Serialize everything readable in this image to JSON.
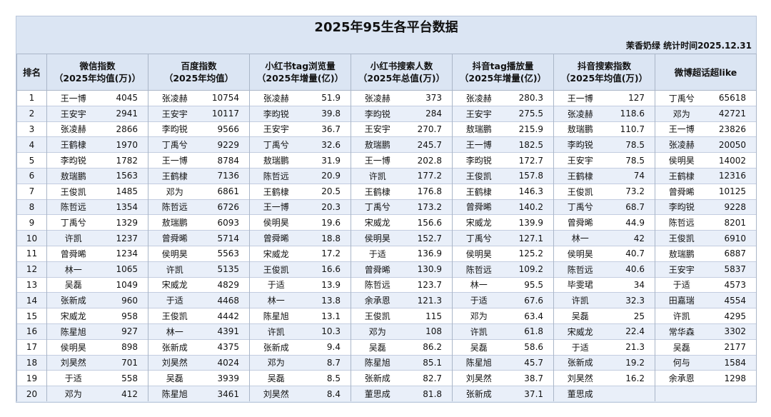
{
  "title": "2025年95生各平台数据",
  "subtitle": "茉香奶绿  统计时间2025.12.31",
  "rank_header": "排名",
  "ranks": [
    1,
    2,
    3,
    4,
    5,
    6,
    7,
    8,
    9,
    10,
    11,
    12,
    13,
    14,
    15,
    16,
    17,
    18,
    19,
    20
  ],
  "columns": [
    {
      "header": [
        "微信指数",
        "（2025年均值(万)）"
      ],
      "entries": [
        {
          "name": "王一博",
          "value": 4045
        },
        {
          "name": "王安宇",
          "value": 2941
        },
        {
          "name": "张凌赫",
          "value": 2866
        },
        {
          "name": "王鹤棣",
          "value": 1970
        },
        {
          "name": "李昀锐",
          "value": 1782
        },
        {
          "name": "敖瑞鹏",
          "value": 1563
        },
        {
          "name": "王俊凯",
          "value": 1485
        },
        {
          "name": "陈哲远",
          "value": 1354
        },
        {
          "name": "丁禹兮",
          "value": 1329
        },
        {
          "name": "许凯",
          "value": 1237
        },
        {
          "name": "曾舜晞",
          "value": 1234
        },
        {
          "name": "林一",
          "value": 1065
        },
        {
          "name": "吴磊",
          "value": 1049
        },
        {
          "name": "张新成",
          "value": 960
        },
        {
          "name": "宋威龙",
          "value": 958
        },
        {
          "name": "陈星旭",
          "value": 927
        },
        {
          "name": "侯明昊",
          "value": 898
        },
        {
          "name": "刘昊然",
          "value": 701
        },
        {
          "name": "于适",
          "value": 558
        },
        {
          "name": "邓为",
          "value": 412
        }
      ]
    },
    {
      "header": [
        "百度指数",
        "（2025年均值）"
      ],
      "entries": [
        {
          "name": "张凌赫",
          "value": 10754
        },
        {
          "name": "王安宇",
          "value": 10117
        },
        {
          "name": "李昀锐",
          "value": 9566
        },
        {
          "name": "丁禹兮",
          "value": 9229
        },
        {
          "name": "王一博",
          "value": 8784
        },
        {
          "name": "王鹤棣",
          "value": 7136
        },
        {
          "name": "邓为",
          "value": 6861
        },
        {
          "name": "陈哲远",
          "value": 6726
        },
        {
          "name": "敖瑞鹏",
          "value": 6093
        },
        {
          "name": "曾舜晞",
          "value": 5714
        },
        {
          "name": "侯明昊",
          "value": 5563
        },
        {
          "name": "许凯",
          "value": 5135
        },
        {
          "name": "宋威龙",
          "value": 4829
        },
        {
          "name": "于适",
          "value": 4468
        },
        {
          "name": "王俊凯",
          "value": 4442
        },
        {
          "name": "林一",
          "value": 4391
        },
        {
          "name": "张新成",
          "value": 4375
        },
        {
          "name": "刘昊然",
          "value": 4024
        },
        {
          "name": "吴磊",
          "value": 3939
        },
        {
          "name": "陈星旭",
          "value": 3461
        }
      ]
    },
    {
      "header": [
        "小红书tag浏览量",
        "（2025年增量(亿)）"
      ],
      "entries": [
        {
          "name": "张凌赫",
          "value": 51.9
        },
        {
          "name": "李昀锐",
          "value": 39.8
        },
        {
          "name": "王安宇",
          "value": 36.7
        },
        {
          "name": "丁禹兮",
          "value": 32.6
        },
        {
          "name": "敖瑞鹏",
          "value": 31.9
        },
        {
          "name": "陈哲远",
          "value": 20.9
        },
        {
          "name": "王鹤棣",
          "value": 20.5
        },
        {
          "name": "王一博",
          "value": 20.3
        },
        {
          "name": "侯明昊",
          "value": 19.6
        },
        {
          "name": "曾舜晞",
          "value": 18.8
        },
        {
          "name": "宋威龙",
          "value": 17.2
        },
        {
          "name": "王俊凯",
          "value": 16.6
        },
        {
          "name": "于适",
          "value": 13.9
        },
        {
          "name": "林一",
          "value": 13.8
        },
        {
          "name": "陈星旭",
          "value": 13.1
        },
        {
          "name": "许凯",
          "value": 10.3
        },
        {
          "name": "张新成",
          "value": 9.4
        },
        {
          "name": "邓为",
          "value": 8.7
        },
        {
          "name": "吴磊",
          "value": 8.5
        },
        {
          "name": "刘昊然",
          "value": 8.4
        }
      ]
    },
    {
      "header": [
        "小红书搜索人数",
        "（2025年总值(万)）"
      ],
      "entries": [
        {
          "name": "张凌赫",
          "value": 373
        },
        {
          "name": "李昀锐",
          "value": 284
        },
        {
          "name": "王安宇",
          "value": 270.7
        },
        {
          "name": "敖瑞鹏",
          "value": 245.7
        },
        {
          "name": "王一博",
          "value": 202.8
        },
        {
          "name": "许凯",
          "value": 177.2
        },
        {
          "name": "王鹤棣",
          "value": 176.8
        },
        {
          "name": "丁禹兮",
          "value": 173.2
        },
        {
          "name": "宋威龙",
          "value": 156.6
        },
        {
          "name": "侯明昊",
          "value": 152.7
        },
        {
          "name": "于适",
          "value": 136.9
        },
        {
          "name": "曾舜晞",
          "value": 130.9
        },
        {
          "name": "陈哲远",
          "value": 123.7
        },
        {
          "name": "余承恩",
          "value": 121.3
        },
        {
          "name": "王俊凯",
          "value": 115
        },
        {
          "name": "邓为",
          "value": 108
        },
        {
          "name": "吴磊",
          "value": 86.2
        },
        {
          "name": "陈星旭",
          "value": 85.1
        },
        {
          "name": "张新成",
          "value": 82.7
        },
        {
          "name": "董思成",
          "value": 81.8
        }
      ]
    },
    {
      "header": [
        "抖音tag播放量",
        "（2025年增量(亿)）"
      ],
      "entries": [
        {
          "name": "张凌赫",
          "value": 280.3
        },
        {
          "name": "王安宇",
          "value": 275.5
        },
        {
          "name": "敖瑞鹏",
          "value": 215.9
        },
        {
          "name": "王一博",
          "value": 182.5
        },
        {
          "name": "李昀锐",
          "value": 172.7
        },
        {
          "name": "王俊凯",
          "value": 157.8
        },
        {
          "name": "王鹤棣",
          "value": 146.3
        },
        {
          "name": "曾舜晞",
          "value": 140.2
        },
        {
          "name": "宋威龙",
          "value": 139.9
        },
        {
          "name": "丁禹兮",
          "value": 127.1
        },
        {
          "name": "侯明昊",
          "value": 125.2
        },
        {
          "name": "陈哲远",
          "value": 109.2
        },
        {
          "name": "林一",
          "value": 95.5
        },
        {
          "name": "于适",
          "value": 67.6
        },
        {
          "name": "邓为",
          "value": 63.4
        },
        {
          "name": "许凯",
          "value": 61.8
        },
        {
          "name": "吴磊",
          "value": 58.6
        },
        {
          "name": "陈星旭",
          "value": 45.7
        },
        {
          "name": "刘昊然",
          "value": 38.7
        },
        {
          "name": "张新成",
          "value": 37.1
        }
      ]
    },
    {
      "header": [
        "抖音搜索指数",
        "（2025年均值(万)）"
      ],
      "entries": [
        {
          "name": "王一博",
          "value": 127
        },
        {
          "name": "张凌赫",
          "value": 118.6
        },
        {
          "name": "敖瑞鹏",
          "value": 110.7
        },
        {
          "name": "李昀锐",
          "value": 78.5
        },
        {
          "name": "王安宇",
          "value": 78.5
        },
        {
          "name": "王鹤棣",
          "value": 74
        },
        {
          "name": "王俊凯",
          "value": 73.2
        },
        {
          "name": "丁禹兮",
          "value": 68.7
        },
        {
          "name": "曾舜晞",
          "value": 44.9
        },
        {
          "name": "林一",
          "value": 42
        },
        {
          "name": "侯明昊",
          "value": 40.7
        },
        {
          "name": "陈哲远",
          "value": 40.6
        },
        {
          "name": "毕雯珺",
          "value": 34
        },
        {
          "name": "许凯",
          "value": 32.3
        },
        {
          "name": "吴磊",
          "value": 25
        },
        {
          "name": "宋威龙",
          "value": 22.4
        },
        {
          "name": "于适",
          "value": 21.3
        },
        {
          "name": "张新成",
          "value": 19.2
        },
        {
          "name": "刘昊然",
          "value": 16.2
        },
        {
          "name": "董思成"
        }
      ]
    },
    {
      "header": [
        "微博超话超like"
      ],
      "entries": [
        {
          "name": "丁禹兮",
          "value": 65618
        },
        {
          "name": "邓为",
          "value": 42721
        },
        {
          "name": "王一博",
          "value": 23826
        },
        {
          "name": "张凌赫",
          "value": 20050
        },
        {
          "name": "侯明昊",
          "value": 14002
        },
        {
          "name": "王鹤棣",
          "value": 12316
        },
        {
          "name": "曾舜晞",
          "value": 10125
        },
        {
          "name": "李昀锐",
          "value": 9228
        },
        {
          "name": "陈哲远",
          "value": 8201
        },
        {
          "name": "王俊凯",
          "value": 6910
        },
        {
          "name": "敖瑞鹏",
          "value": 6887
        },
        {
          "name": "王安宇",
          "value": 5837
        },
        {
          "name": "于适",
          "value": 4573
        },
        {
          "name": "田嘉瑞",
          "value": 4554
        },
        {
          "name": "许凯",
          "value": 4295
        },
        {
          "name": "常华森",
          "value": 3302
        },
        {
          "name": "吴磊",
          "value": 2177
        },
        {
          "name": "何与",
          "value": 1584
        },
        {
          "name": "余承恩",
          "value": 1298
        }
      ]
    }
  ]
}
